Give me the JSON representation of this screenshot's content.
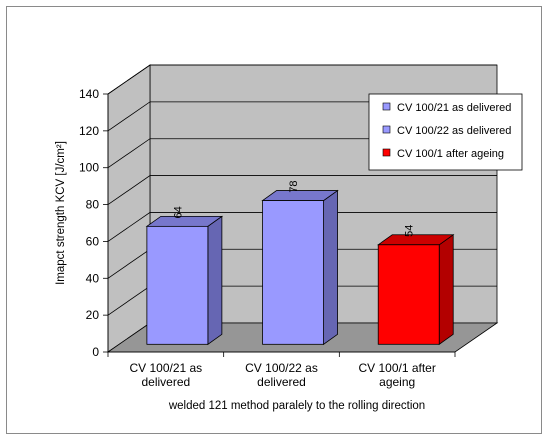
{
  "chart_data": {
    "type": "bar",
    "title": "",
    "categories": [
      [
        "CV 100/21 as",
        "delivered"
      ],
      [
        "CV 100/22 as",
        "delivered"
      ],
      [
        "CV 100/1 after",
        "ageing"
      ]
    ],
    "values": [
      64,
      78,
      54
    ],
    "data_labels": [
      "64",
      "78",
      "54"
    ],
    "legend": [
      "CV 100/21 as delivered",
      "CV 100/22 as delivered",
      "CV 100/1 after ageing"
    ],
    "legend_position": "top-right",
    "xlabel": "welded 121 method paralely to the rolling direction",
    "ylabel": "Imapct strength KCV [J/cm²]",
    "ylim": [
      0,
      140
    ],
    "yticks": [
      "0",
      "20",
      "40",
      "60",
      "80",
      "100",
      "120",
      "140"
    ],
    "grid": true,
    "colors": {
      "front": [
        "#9999ff",
        "#9999ff",
        "#ff0000"
      ],
      "side": [
        "#6666b3",
        "#6666b3",
        "#b30000"
      ],
      "top": [
        "#7777cc",
        "#7777cc",
        "#cc0000"
      ],
      "wall": "#c0c0c0",
      "floor": "#969696"
    }
  }
}
